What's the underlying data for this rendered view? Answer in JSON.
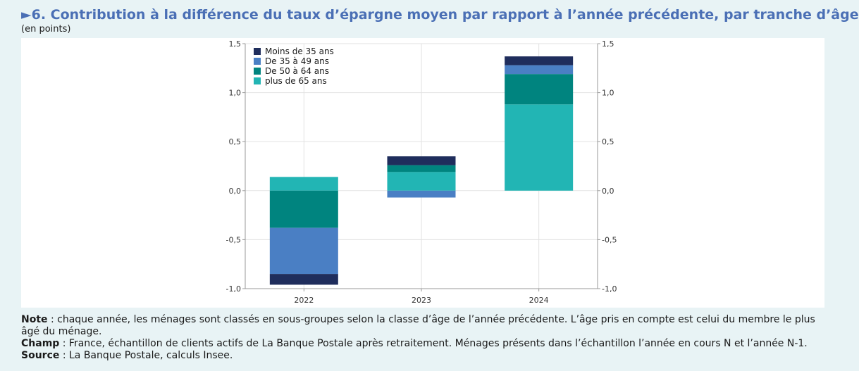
{
  "header": {
    "title": "►6. Contribution à la différence du taux d’épargne moyen par rapport à l’année précédente, par tranche d’âge",
    "subtitle": "(en points)"
  },
  "chart_data": {
    "type": "bar",
    "stacked": true,
    "categories": [
      "2022",
      "2023",
      "2024"
    ],
    "series": [
      {
        "name": "Moins de 35 ans",
        "color": "#1f2d5c",
        "values": [
          -0.11,
          0.09,
          0.09
        ]
      },
      {
        "name": "De 35 à 49 ans",
        "color": "#4a7fc4",
        "values": [
          -0.47,
          -0.07,
          0.09
        ]
      },
      {
        "name": "De 50 à 64 ans",
        "color": "#00847f",
        "values": [
          -0.38,
          0.07,
          0.31
        ]
      },
      {
        "name": "plus de 65 ans",
        "color": "#22b5b4",
        "values": [
          0.14,
          0.19,
          0.88
        ]
      }
    ],
    "ylim": [
      -1.0,
      1.5
    ],
    "yticks": [
      "1,5",
      "1,0",
      "0,5",
      "0,0",
      "-0,5",
      "-1,0"
    ],
    "ytick_values": [
      1.5,
      1.0,
      0.5,
      0.0,
      -0.5,
      -1.0
    ],
    "grid": true,
    "legend_position": "top-left",
    "xlabel": "",
    "ylabel": ""
  },
  "notes": {
    "note_label": "Note",
    "note_text": " : chaque année, les ménages sont classés en sous-groupes selon la classe d’âge de l’année précédente. L’âge pris en compte est celui du membre le plus âgé du ménage.",
    "champ_label": "Champ",
    "champ_text": " : France, échantillon de clients actifs de La Banque Postale après retraitement. Ménages présents dans l’échantillon l’année en cours N et l’année N-1.",
    "source_label": "Source",
    "source_text": " : La Banque Postale, calculs Insee."
  }
}
